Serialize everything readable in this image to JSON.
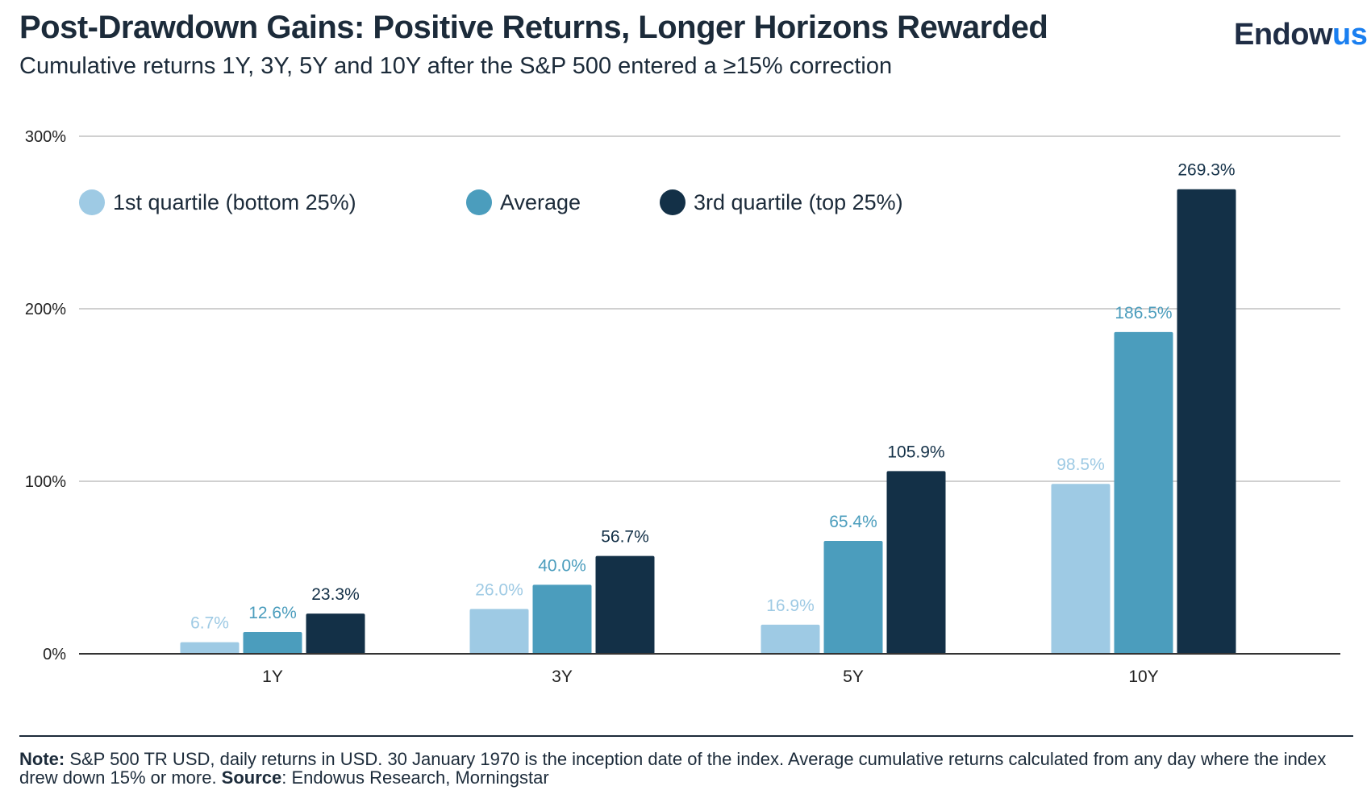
{
  "header": {
    "title": "Post-Drawdown Gains: Positive Returns, Longer Horizons Rewarded",
    "subtitle": "Cumulative returns 1Y, 3Y, 5Y and 10Y after the S&P 500 entered a ≥15% correction",
    "logo_main": "Endow",
    "logo_accent": "us"
  },
  "footer": {
    "note_label": "Note:",
    "note_text": " S&P 500 TR USD, daily returns in USD. 30 January 1970 is the inception date of the index. Average cumulative returns calculated from any day where the index drew down 15% or more. ",
    "source_label": "Source",
    "source_text": ": Endowus Research, Morningstar"
  },
  "chart_data": {
    "type": "bar",
    "categories": [
      "1Y",
      "3Y",
      "5Y",
      "10Y"
    ],
    "series": [
      {
        "name": "1st quartile (bottom 25%)",
        "values": [
          6.7,
          26.0,
          16.9,
          98.5
        ],
        "labels": [
          "6.7%",
          "26.0%",
          "16.9%",
          "98.5%"
        ],
        "color": "#9ecae4"
      },
      {
        "name": "Average",
        "values": [
          12.6,
          40.0,
          65.4,
          186.5
        ],
        "labels": [
          "12.6%",
          "40.0%",
          "65.4%",
          "186.5%"
        ],
        "color": "#4b9dbd"
      },
      {
        "name": "3rd quartile (top 25%)",
        "values": [
          23.3,
          56.7,
          105.9,
          269.3
        ],
        "labels": [
          "23.3%",
          "56.7%",
          "105.9%",
          "269.3%"
        ],
        "color": "#133047"
      }
    ],
    "yticks": [
      0,
      100,
      200,
      300
    ],
    "ytick_labels": [
      "0%",
      "100%",
      "200%",
      "300%"
    ],
    "ylim": [
      0,
      300
    ],
    "grid": true,
    "legend_position": "top-left",
    "xlabel": "",
    "ylabel": ""
  }
}
